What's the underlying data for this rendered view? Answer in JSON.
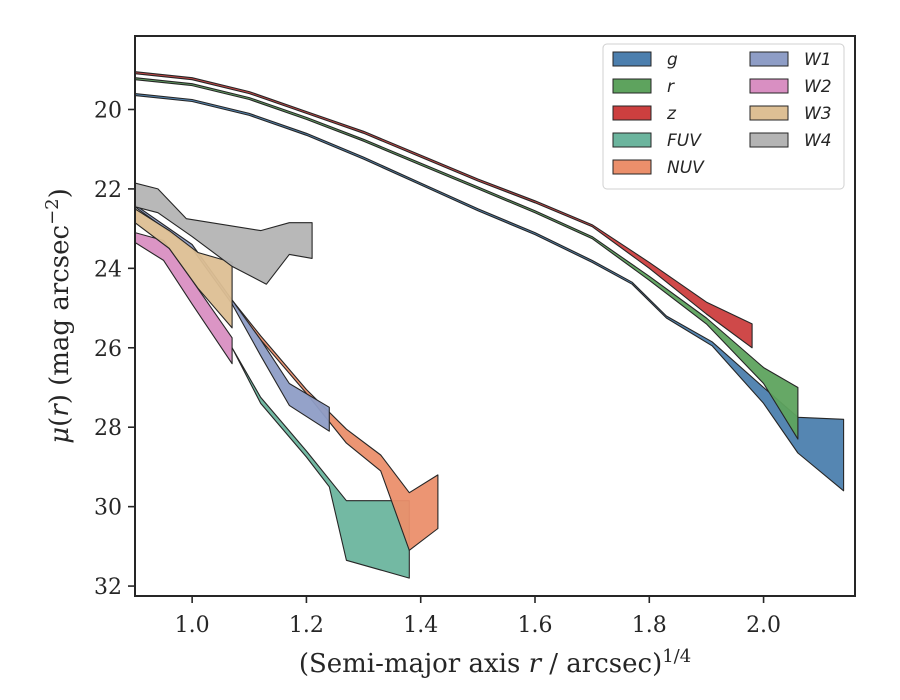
{
  "chart_data": {
    "type": "area",
    "xlabel": "(Semi-major axis r / arcsec)^1/4",
    "ylabel": "μ(r) (mag arcsec^−2)",
    "xlim": [
      0.9,
      2.16
    ],
    "ylim": [
      32.25,
      18.15
    ],
    "y_inverted": true,
    "grid": false,
    "legend": {
      "placement": "top-right",
      "columns": 2
    },
    "xticks": [
      1.0,
      1.2,
      1.4,
      1.6,
      1.8,
      2.0
    ],
    "xtick_labels": [
      "1.0",
      "1.2",
      "1.4",
      "1.6",
      "1.8",
      "2.0"
    ],
    "yticks": [
      20,
      22,
      24,
      26,
      28,
      30,
      32
    ],
    "ytick_labels": [
      "20",
      "22",
      "24",
      "26",
      "28",
      "30",
      "32"
    ],
    "series": [
      {
        "name": "g",
        "color": "#4c7fae",
        "upper": [
          [
            0.9,
            19.6
          ],
          [
            1.0,
            19.75
          ],
          [
            1.1,
            20.1
          ],
          [
            1.2,
            20.6
          ],
          [
            1.3,
            21.2
          ],
          [
            1.4,
            21.85
          ],
          [
            1.5,
            22.5
          ],
          [
            1.6,
            23.1
          ],
          [
            1.7,
            23.8
          ],
          [
            1.77,
            24.35
          ],
          [
            1.83,
            25.2
          ],
          [
            1.91,
            25.85
          ],
          [
            2.0,
            27.0
          ],
          [
            2.06,
            27.75
          ],
          [
            2.14,
            27.8
          ]
        ],
        "lower": [
          [
            0.9,
            19.65
          ],
          [
            1.0,
            19.8
          ],
          [
            1.1,
            20.15
          ],
          [
            1.2,
            20.65
          ],
          [
            1.3,
            21.25
          ],
          [
            1.4,
            21.9
          ],
          [
            1.5,
            22.55
          ],
          [
            1.6,
            23.15
          ],
          [
            1.7,
            23.85
          ],
          [
            1.77,
            24.4
          ],
          [
            1.83,
            25.25
          ],
          [
            1.91,
            25.95
          ],
          [
            2.0,
            27.4
          ],
          [
            2.06,
            28.65
          ],
          [
            2.14,
            29.6
          ]
        ]
      },
      {
        "name": "r",
        "color": "#5ea35e",
        "upper": [
          [
            0.9,
            19.2
          ],
          [
            1.0,
            19.35
          ],
          [
            1.1,
            19.7
          ],
          [
            1.2,
            20.2
          ],
          [
            1.3,
            20.75
          ],
          [
            1.4,
            21.35
          ],
          [
            1.5,
            21.95
          ],
          [
            1.6,
            22.55
          ],
          [
            1.7,
            23.2
          ],
          [
            1.8,
            24.2
          ],
          [
            1.9,
            25.25
          ],
          [
            2.0,
            26.5
          ],
          [
            2.06,
            27.0
          ]
        ],
        "lower": [
          [
            0.9,
            19.25
          ],
          [
            1.0,
            19.4
          ],
          [
            1.1,
            19.75
          ],
          [
            1.2,
            20.25
          ],
          [
            1.3,
            20.8
          ],
          [
            1.4,
            21.4
          ],
          [
            1.5,
            22.0
          ],
          [
            1.6,
            22.6
          ],
          [
            1.7,
            23.25
          ],
          [
            1.8,
            24.3
          ],
          [
            1.9,
            25.4
          ],
          [
            2.0,
            26.9
          ],
          [
            2.06,
            28.3
          ]
        ]
      },
      {
        "name": "z",
        "color": "#cc3f3f",
        "upper": [
          [
            0.9,
            19.05
          ],
          [
            1.0,
            19.2
          ],
          [
            1.1,
            19.55
          ],
          [
            1.2,
            20.05
          ],
          [
            1.3,
            20.55
          ],
          [
            1.4,
            21.15
          ],
          [
            1.5,
            21.75
          ],
          [
            1.6,
            22.3
          ],
          [
            1.7,
            22.9
          ],
          [
            1.8,
            23.85
          ],
          [
            1.9,
            24.85
          ],
          [
            1.98,
            25.4
          ]
        ],
        "lower": [
          [
            0.9,
            19.1
          ],
          [
            1.0,
            19.25
          ],
          [
            1.1,
            19.6
          ],
          [
            1.2,
            20.1
          ],
          [
            1.3,
            20.6
          ],
          [
            1.4,
            21.2
          ],
          [
            1.5,
            21.8
          ],
          [
            1.6,
            22.35
          ],
          [
            1.7,
            22.95
          ],
          [
            1.8,
            24.0
          ],
          [
            1.9,
            25.15
          ],
          [
            1.98,
            26.0
          ]
        ]
      },
      {
        "name": "FUV",
        "color": "#6cb59e",
        "upper": [
          [
            1.07,
            26.0
          ],
          [
            1.12,
            27.25
          ],
          [
            1.2,
            28.6
          ],
          [
            1.27,
            29.85
          ],
          [
            1.38,
            29.85
          ]
        ],
        "lower": [
          [
            1.07,
            26.0
          ],
          [
            1.12,
            27.4
          ],
          [
            1.2,
            28.75
          ],
          [
            1.24,
            29.5
          ],
          [
            1.27,
            31.35
          ],
          [
            1.38,
            31.8
          ]
        ]
      },
      {
        "name": "NUV",
        "color": "#eb8f6b",
        "upper": [
          [
            1.07,
            24.8
          ],
          [
            1.12,
            25.7
          ],
          [
            1.2,
            27.05
          ],
          [
            1.27,
            28.05
          ],
          [
            1.33,
            28.7
          ],
          [
            1.38,
            29.65
          ],
          [
            1.43,
            29.2
          ]
        ],
        "lower": [
          [
            1.07,
            24.85
          ],
          [
            1.12,
            25.8
          ],
          [
            1.2,
            27.15
          ],
          [
            1.27,
            28.4
          ],
          [
            1.33,
            29.1
          ],
          [
            1.38,
            31.1
          ],
          [
            1.43,
            30.55
          ]
        ]
      },
      {
        "name": "W1",
        "color": "#8e9dc6",
        "upper": [
          [
            0.9,
            22.4
          ],
          [
            1.0,
            23.4
          ],
          [
            1.07,
            24.8
          ],
          [
            1.12,
            25.8
          ],
          [
            1.17,
            26.9
          ],
          [
            1.24,
            27.5
          ]
        ],
        "lower": [
          [
            0.9,
            22.45
          ],
          [
            1.0,
            23.5
          ],
          [
            1.07,
            24.9
          ],
          [
            1.12,
            26.2
          ],
          [
            1.17,
            27.45
          ],
          [
            1.24,
            28.1
          ]
        ]
      },
      {
        "name": "W2",
        "color": "#d98fc2",
        "upper": [
          [
            0.9,
            23.1
          ],
          [
            0.95,
            23.3
          ],
          [
            1.0,
            24.3
          ],
          [
            1.07,
            25.75
          ]
        ],
        "lower": [
          [
            0.9,
            23.35
          ],
          [
            0.95,
            23.8
          ],
          [
            1.0,
            24.9
          ],
          [
            1.07,
            26.4
          ]
        ]
      },
      {
        "name": "W3",
        "color": "#ddbf94",
        "upper": [
          [
            0.9,
            22.5
          ],
          [
            0.96,
            23.05
          ],
          [
            1.01,
            23.6
          ],
          [
            1.07,
            23.85
          ]
        ],
        "lower": [
          [
            0.9,
            22.85
          ],
          [
            0.96,
            23.5
          ],
          [
            1.01,
            24.5
          ],
          [
            1.07,
            25.5
          ]
        ]
      },
      {
        "name": "W4",
        "color": "#b4b4b4",
        "upper": [
          [
            0.9,
            21.85
          ],
          [
            0.94,
            22.0
          ],
          [
            0.99,
            22.75
          ],
          [
            1.12,
            23.05
          ],
          [
            1.17,
            22.85
          ],
          [
            1.21,
            22.85
          ]
        ],
        "lower": [
          [
            0.9,
            22.45
          ],
          [
            0.94,
            22.6
          ],
          [
            1.0,
            23.2
          ],
          [
            1.07,
            23.95
          ],
          [
            1.13,
            24.4
          ],
          [
            1.17,
            23.65
          ],
          [
            1.21,
            23.75
          ]
        ]
      }
    ]
  }
}
